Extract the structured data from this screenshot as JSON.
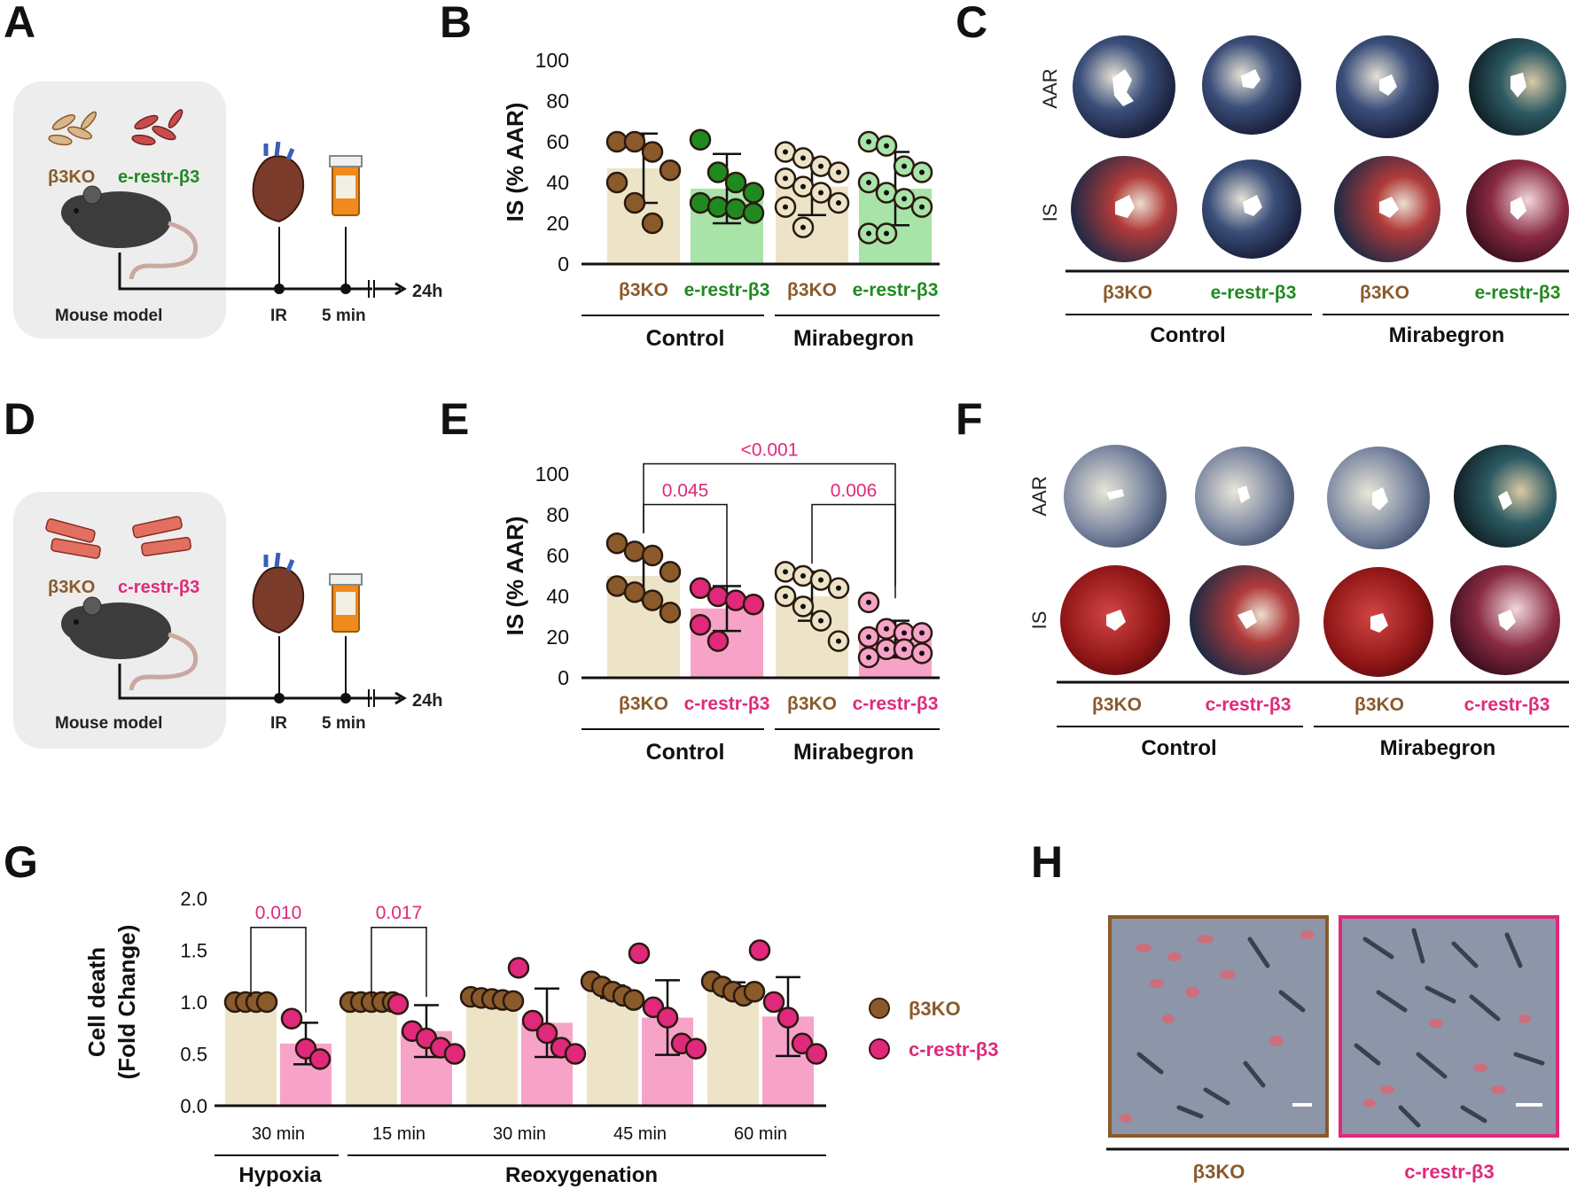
{
  "colors": {
    "b3ko": "#8a5a2b",
    "b3ko_fill": "#ede4c8",
    "erestr": "#208a20",
    "erestr_fill": "#a8e3a8",
    "crestr": "#e0297a",
    "crestr_fill": "#f7a3c8",
    "panel_bg": "#ededed"
  },
  "panels": {
    "A": {
      "letter": "A",
      "species_a": "β3KO",
      "species_b": "e-restr-β3",
      "model": "Mouse model",
      "t1": "IR",
      "t2": "5 min",
      "t3": "24h"
    },
    "B": {
      "letter": "B"
    },
    "C": {
      "letter": "C",
      "row1": "AAR",
      "row2": "IS",
      "cols": [
        "β3KO",
        "e-restr-β3",
        "β3KO",
        "e-restr-β3"
      ],
      "groups": [
        "Control",
        "Mirabegron"
      ]
    },
    "D": {
      "letter": "D",
      "species_a": "β3KO",
      "species_b": "c-restr-β3",
      "model": "Mouse model",
      "t1": "IR",
      "t2": "5 min",
      "t3": "24h"
    },
    "E": {
      "letter": "E"
    },
    "F": {
      "letter": "F",
      "row1": "AAR",
      "row2": "IS",
      "cols": [
        "β3KO",
        "c-restr-β3",
        "β3KO",
        "c-restr-β3"
      ],
      "groups": [
        "Control",
        "Mirabegron"
      ]
    },
    "G": {
      "letter": "G",
      "legend": [
        "β3KO",
        "c-restr-β3"
      ]
    },
    "H": {
      "letter": "H",
      "labels": [
        "β3KO",
        "c-restr-β3"
      ]
    }
  },
  "chart_data": [
    {
      "id": "B",
      "type": "bar",
      "ylabel": "IS (% AAR)",
      "ylim": [
        0,
        100
      ],
      "yticks": [
        0,
        20,
        40,
        60,
        80,
        100
      ],
      "categories": [
        "β3KO",
        "e-restr-β3",
        "β3KO",
        "e-restr-β3"
      ],
      "groups": [
        "Control",
        "Mirabegron"
      ],
      "means": [
        47,
        37,
        38,
        37
      ],
      "sd": [
        17,
        17,
        14,
        18
      ],
      "points": [
        [
          60,
          60,
          55,
          46,
          40,
          30,
          20
        ],
        [
          61,
          45,
          40,
          35,
          30,
          28,
          27,
          25
        ],
        [
          55,
          52,
          48,
          45,
          42,
          38,
          35,
          30,
          28,
          18
        ],
        [
          60,
          58,
          48,
          45,
          40,
          35,
          32,
          28,
          15,
          15
        ]
      ]
    },
    {
      "id": "E",
      "type": "bar",
      "ylabel": "IS (% AAR)",
      "ylim": [
        0,
        100
      ],
      "yticks": [
        0,
        20,
        40,
        60,
        80,
        100
      ],
      "categories": [
        "β3KO",
        "c-restr-β3",
        "β3KO",
        "c-restr-β3"
      ],
      "groups": [
        "Control",
        "Mirabegron"
      ],
      "means": [
        50,
        34,
        40,
        19
      ],
      "sd": [
        12,
        11,
        12,
        9
      ],
      "points": [
        [
          66,
          62,
          60,
          52,
          45,
          42,
          38,
          32
        ],
        [
          44,
          40,
          38,
          36,
          26,
          18
        ],
        [
          52,
          50,
          48,
          44,
          40,
          35,
          28,
          18
        ],
        [
          37,
          24,
          22,
          22,
          20,
          14,
          14,
          12,
          10
        ]
      ],
      "comparisons": [
        {
          "label": "<0.001",
          "from": 0,
          "to": 3
        },
        {
          "label": "0.045",
          "from": 0,
          "to": 1
        },
        {
          "label": "0.006",
          "from": 2,
          "to": 3
        }
      ]
    },
    {
      "id": "G",
      "type": "bar",
      "ylabel": "Cell death (Fold Change)",
      "ylim": [
        0,
        2.0
      ],
      "yticks": [
        "0.0",
        "0.5",
        "1.0",
        "1.5",
        "2.0"
      ],
      "categories": [
        "30 min",
        "15 min",
        "30 min",
        "45 min",
        "60 min"
      ],
      "groups": [
        "Hypoxia",
        "Reoxygenation"
      ],
      "series": [
        {
          "name": "β3KO",
          "means": [
            1.0,
            1.0,
            1.03,
            1.1,
            1.12
          ],
          "sd": [
            0,
            0,
            0.02,
            0.06,
            0.07
          ],
          "points": [
            [
              1.0,
              1.0,
              1.0,
              1.0
            ],
            [
              1.0,
              1.0,
              1.0,
              1.0,
              1.0
            ],
            [
              1.05,
              1.04,
              1.03,
              1.02,
              1.01
            ],
            [
              1.2,
              1.15,
              1.1,
              1.06,
              1.02
            ],
            [
              1.2,
              1.15,
              1.1,
              1.06,
              1.1
            ]
          ]
        },
        {
          "name": "c-restr-β3",
          "means": [
            0.6,
            0.72,
            0.8,
            0.85,
            0.86
          ],
          "sd": [
            0.2,
            0.25,
            0.33,
            0.36,
            0.38
          ],
          "points": [
            [
              0.84,
              0.55,
              0.45
            ],
            [
              0.98,
              0.72,
              0.65,
              0.56,
              0.5
            ],
            [
              1.33,
              0.82,
              0.7,
              0.56,
              0.5
            ],
            [
              1.47,
              0.95,
              0.85,
              0.6,
              0.55
            ],
            [
              1.5,
              1.0,
              0.85,
              0.6,
              0.5
            ]
          ]
        }
      ],
      "comparisons": [
        {
          "label": "0.010",
          "cat": 0
        },
        {
          "label": "0.017",
          "cat": 1
        }
      ]
    }
  ]
}
